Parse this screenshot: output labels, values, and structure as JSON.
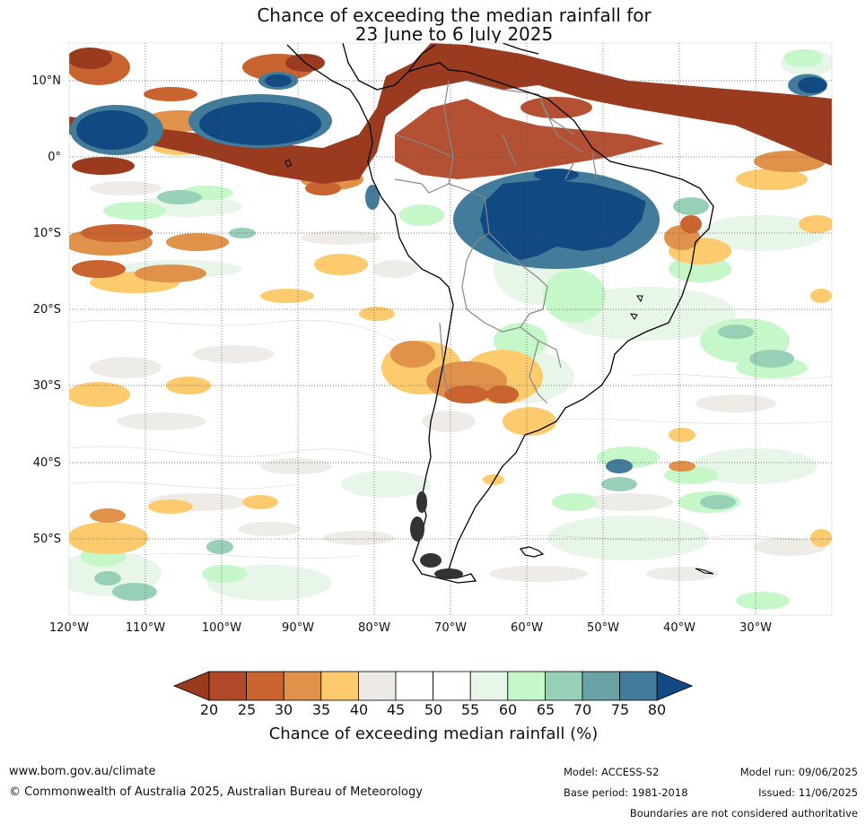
{
  "title": {
    "line1": "Chance of exceeding the median rainfall for",
    "line2": "23 June to 6 July 2025"
  },
  "map": {
    "latitude_labels": [
      "10°N",
      "0°",
      "10°S",
      "20°S",
      "30°S",
      "40°S",
      "50°S"
    ],
    "longitude_labels": [
      "120°W",
      "110°W",
      "100°W",
      "90°W",
      "80°W",
      "70°W",
      "60°W",
      "50°W",
      "40°W",
      "30°W"
    ],
    "extent": {
      "lon_west": -120,
      "lon_east": -20,
      "lat_north": 15,
      "lat_south": -60
    },
    "gridlines": true,
    "gridline_style": "dotted",
    "coastlines_color": "#000000",
    "borders_color": "#888888"
  },
  "legend": {
    "label": "Chance of exceeding median rainfall (%)",
    "ticks": [
      "20",
      "25",
      "30",
      "35",
      "40",
      "45",
      "50",
      "55",
      "60",
      "65",
      "70",
      "75",
      "80"
    ],
    "bins": [
      {
        "range": "<20",
        "color": "#9a3a1f"
      },
      {
        "range": "20-25",
        "color": "#b0482a"
      },
      {
        "range": "25-30",
        "color": "#c9632f"
      },
      {
        "range": "30-35",
        "color": "#e0924a"
      },
      {
        "range": "35-40",
        "color": "#fdcb6e"
      },
      {
        "range": "40-45",
        "color": "#edeae5"
      },
      {
        "range": "45-50",
        "color": "#ffffff"
      },
      {
        "range": "50-55",
        "color": "#ffffff"
      },
      {
        "range": "55-60",
        "color": "#e8f5e9"
      },
      {
        "range": "60-65",
        "color": "#c6f7c9"
      },
      {
        "range": "65-70",
        "color": "#98cfb7"
      },
      {
        "range": "70-75",
        "color": "#6aa3a6"
      },
      {
        "range": "75-80",
        "color": "#437c9a"
      },
      {
        "range": ">80",
        "color": "#114a82"
      }
    ]
  },
  "footer": {
    "website": "www.bom.gov.au/climate",
    "copyright": "© Commonwealth of Australia 2025, Australian Bureau of Meteorology",
    "model": "Model: ACCESS-S2",
    "base_period": "Base period: 1981-2018",
    "model_run": "Model run: 09/06/2025",
    "issued": "Issued: 11/06/2025",
    "disclaimer": "Boundaries are not considered authoritative"
  }
}
